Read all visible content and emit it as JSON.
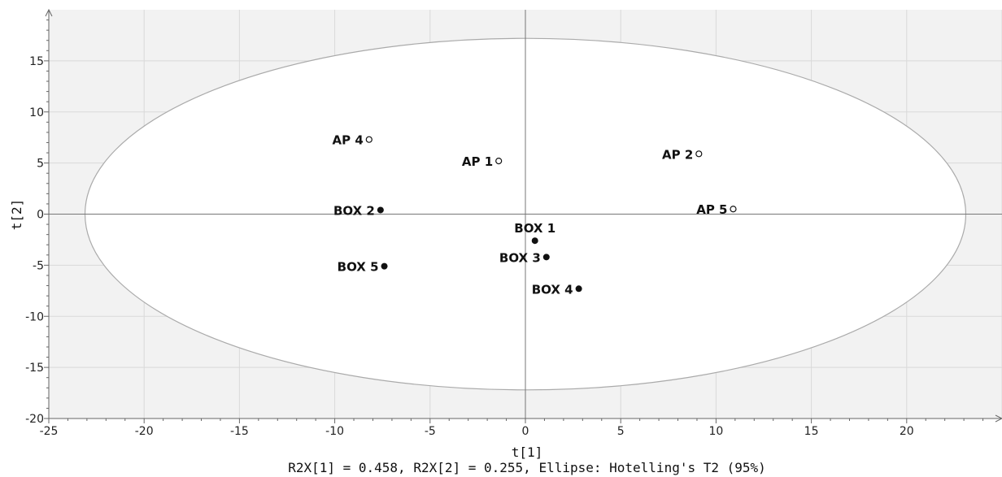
{
  "chart_data": {
    "type": "scatter",
    "title": "",
    "xlabel": "t[1]",
    "ylabel": "t[2]",
    "footnote": "R2X[1] = 0.458, R2X[2] = 0.255, Ellipse: Hotelling's T2 (95%)",
    "xlim": [
      -25,
      25
    ],
    "ylim": [
      -20,
      20
    ],
    "xticks": [
      -25,
      -20,
      -15,
      -10,
      -5,
      0,
      5,
      10,
      15,
      20
    ],
    "yticks": [
      -20,
      -15,
      -10,
      -5,
      0,
      5,
      10,
      15
    ],
    "grid": true,
    "ellipse": {
      "semi_axis_x": 23.1,
      "semi_axis_y": 17.2
    },
    "colors": {
      "background": "#f2f2f2",
      "grid": "#d9d9d9",
      "ellipse_fill": "#ffffff",
      "ellipse_stroke": "#aaaaaa",
      "marker": "#111111"
    },
    "points": [
      {
        "label": "AP 4",
        "x": -8.2,
        "y": 7.3,
        "marker": "open"
      },
      {
        "label": "AP 1",
        "x": -1.4,
        "y": 5.2,
        "marker": "open"
      },
      {
        "label": "AP 2",
        "x": 9.1,
        "y": 5.9,
        "marker": "open"
      },
      {
        "label": "AP 5",
        "x": 10.9,
        "y": 0.5,
        "marker": "open"
      },
      {
        "label": "BOX 2",
        "x": -7.6,
        "y": 0.4,
        "marker": "filled"
      },
      {
        "label": "BOX 1",
        "x": 0.5,
        "y": -2.6,
        "marker": "filled"
      },
      {
        "label": "BOX 3",
        "x": 1.1,
        "y": -4.2,
        "marker": "filled"
      },
      {
        "label": "BOX 5",
        "x": -7.4,
        "y": -5.1,
        "marker": "filled"
      },
      {
        "label": "BOX 4",
        "x": 2.8,
        "y": -7.3,
        "marker": "filled"
      }
    ]
  }
}
